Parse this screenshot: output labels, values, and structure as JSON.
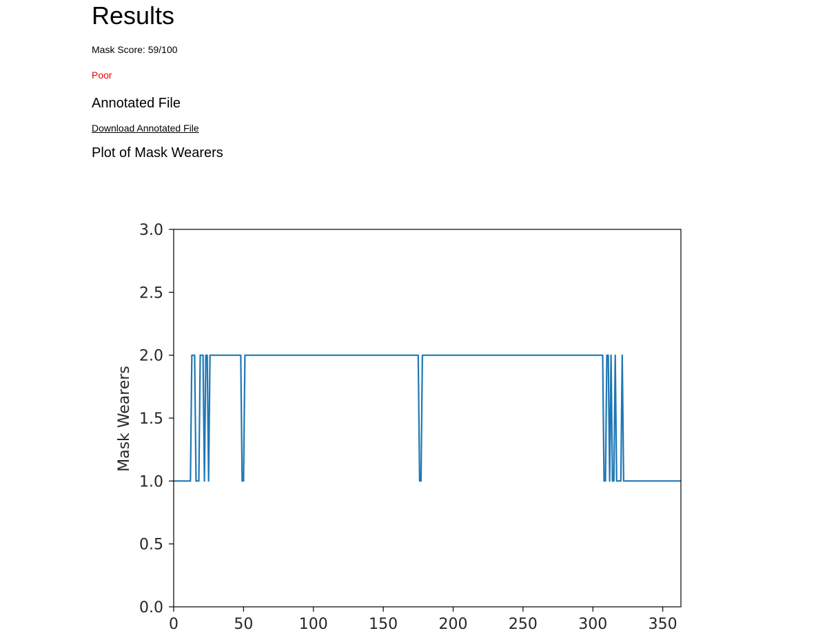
{
  "page": {
    "title": "Results",
    "mask_score": "Mask Score: 59/100",
    "rating": "Poor",
    "rating_color": "#e60000",
    "annotated_heading": "Annotated File",
    "download_link": "Download Annotated File",
    "plot_heading": "Plot of Mask Wearers"
  },
  "chart_data": {
    "type": "line",
    "title": "",
    "xlabel": "",
    "ylabel": "Mask Wearers",
    "xlim": [
      0,
      363
    ],
    "ylim": [
      0,
      3
    ],
    "xticks": [
      0,
      50,
      100,
      150,
      200,
      250,
      300,
      350
    ],
    "yticks": [
      0.0,
      0.5,
      1.0,
      1.5,
      2.0,
      2.5,
      3.0
    ],
    "xtick_labels": [
      "0",
      "50",
      "100",
      "150",
      "200",
      "250",
      "300",
      "350"
    ],
    "ytick_labels": [
      "0.0",
      "0.5",
      "1.0",
      "1.5",
      "2.0",
      "2.5",
      "3.0"
    ],
    "grid": false,
    "series": [
      {
        "color": "#1f77b4",
        "x": [
          0,
          12,
          13,
          15,
          16,
          18,
          19,
          21,
          22,
          23,
          24,
          25,
          26,
          48,
          49,
          50,
          51,
          175,
          176,
          177,
          178,
          307,
          308,
          309,
          310,
          311,
          312,
          313,
          314,
          315,
          316,
          317,
          318,
          320,
          321,
          322,
          363
        ],
        "y": [
          1,
          1,
          2,
          2,
          1,
          1,
          2,
          2,
          1,
          2,
          2,
          1,
          2,
          2,
          1,
          1,
          2,
          2,
          1,
          1,
          2,
          2,
          1,
          1,
          2,
          2,
          1,
          2,
          1,
          1,
          2,
          1,
          1,
          1,
          2,
          1,
          1
        ]
      }
    ]
  }
}
